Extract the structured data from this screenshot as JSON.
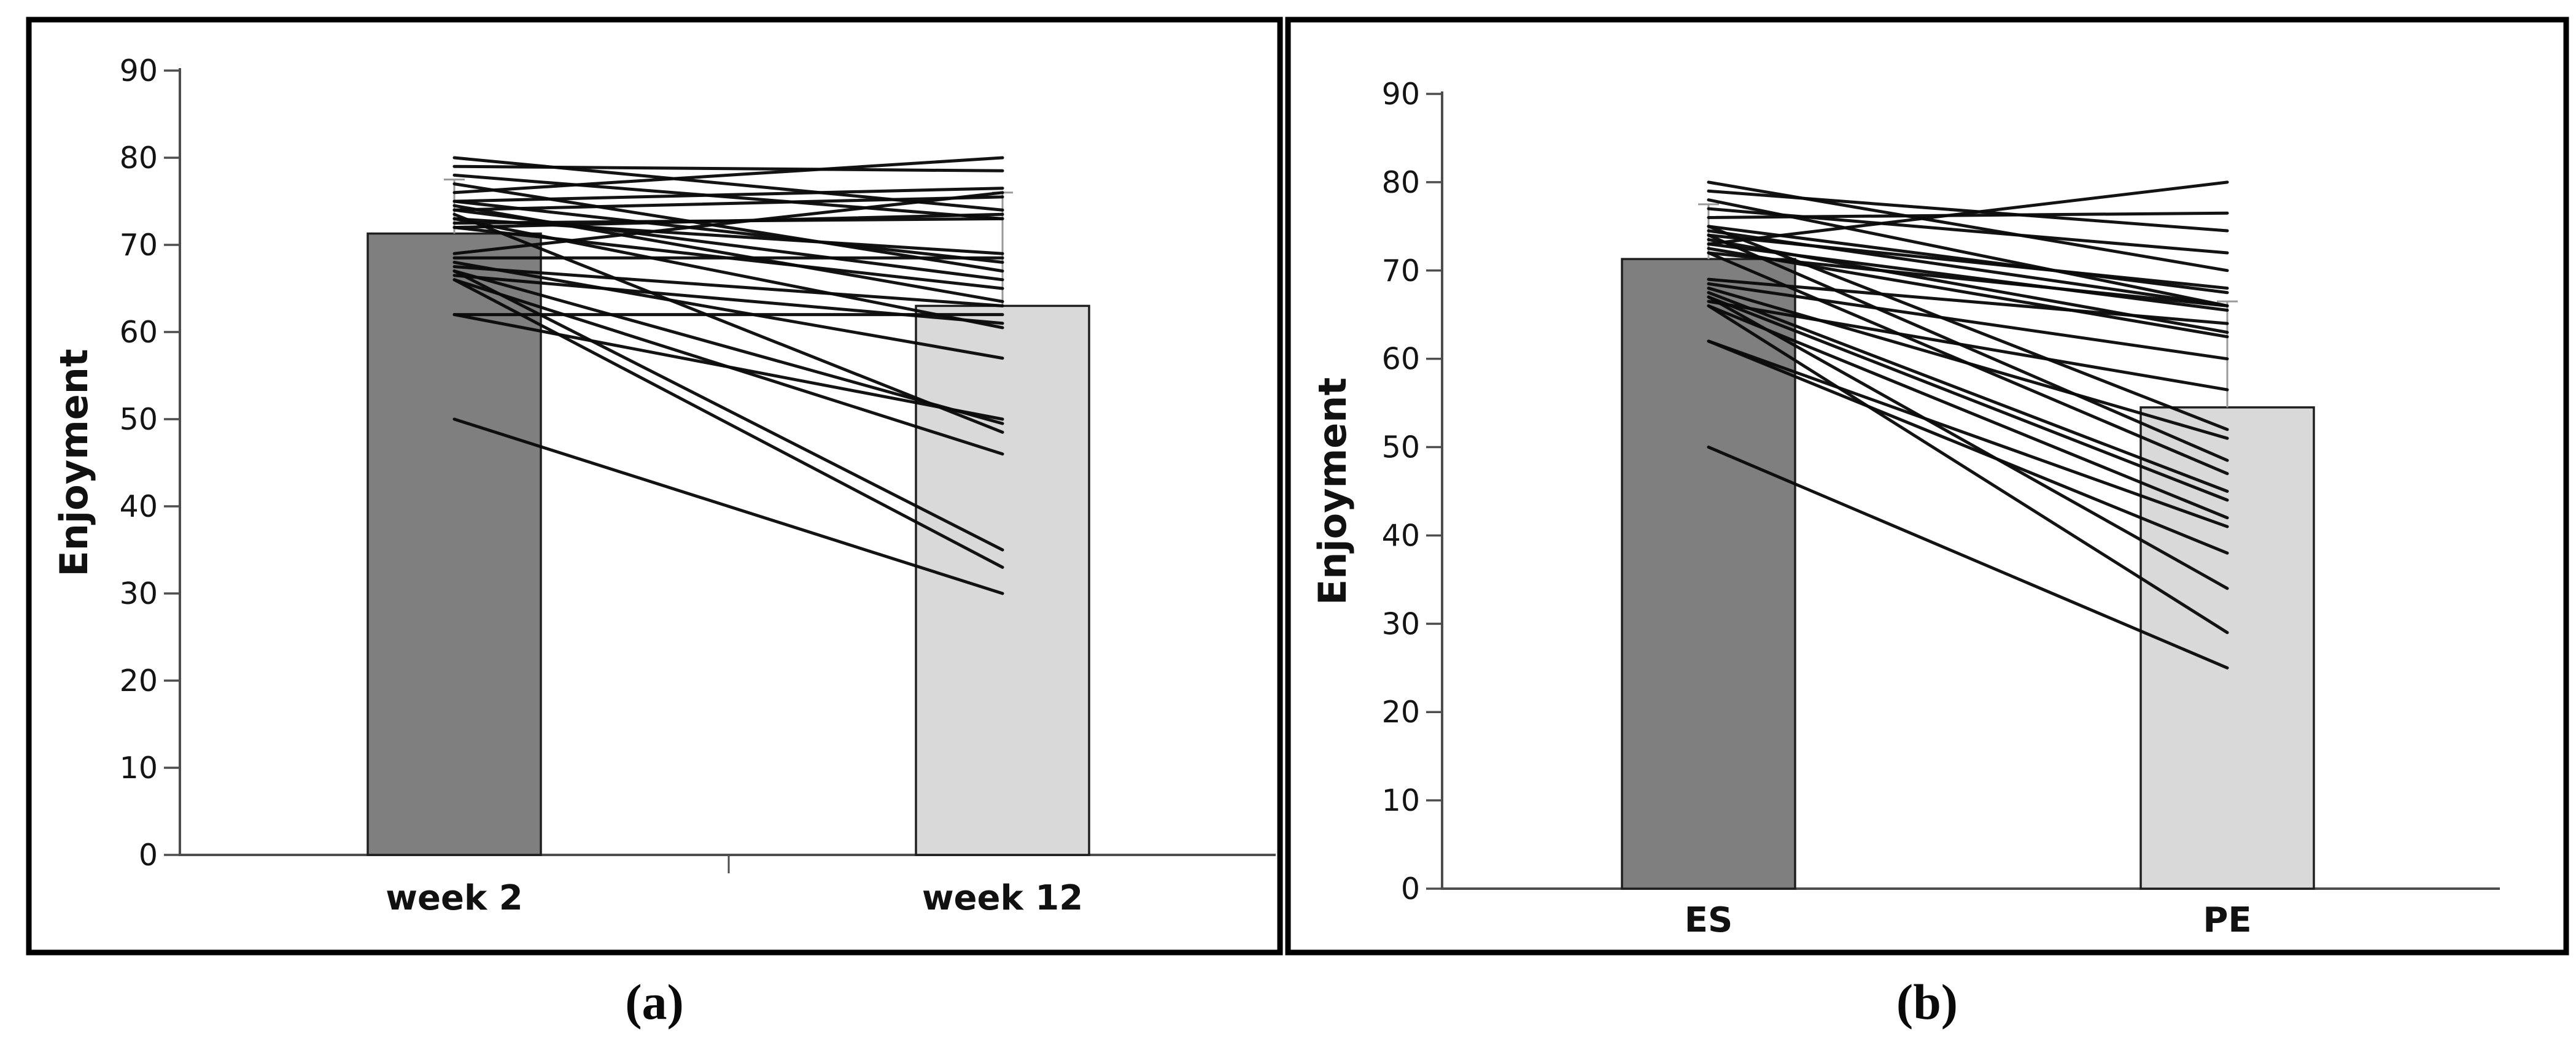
{
  "figure": {
    "captions": {
      "a": "(a)",
      "b": "(b)"
    }
  },
  "style": {
    "dark_bar_fill": "#7f7f7f",
    "light_bar_fill": "#d9d9d9",
    "bar_stroke": "#1f1f1f",
    "line_color": "#0a0a0a",
    "axis_color": "#4d4d4d",
    "error_bar_color": "#9a9a9a",
    "panel_border_color": "#000000",
    "background": "#ffffff"
  },
  "chart_data": [
    {
      "type": "bar",
      "panel": "a",
      "title": "",
      "xlabel": "",
      "ylabel": "Enjoyment",
      "ylim": [
        0,
        90
      ],
      "ytick_labels": [
        "0",
        "10",
        "20",
        "30",
        "40",
        "50",
        "60",
        "70",
        "80",
        "90"
      ],
      "grid": false,
      "legend": "none",
      "categories": [
        "week 2",
        "week 12"
      ],
      "bar_values": [
        71.3,
        63
      ],
      "bar_fills": [
        "#7f7f7f",
        "#d9d9d9"
      ],
      "error_bar_tops": [
        77.5,
        76
      ],
      "overlay": "paired individual participant lines",
      "paired_lines": [
        [
          80,
          74
        ],
        [
          79,
          78.5
        ],
        [
          78,
          73
        ],
        [
          77,
          67
        ],
        [
          76,
          80
        ],
        [
          75,
          76.5
        ],
        [
          75,
          68
        ],
        [
          74.5,
          63.5
        ],
        [
          74,
          75.5
        ],
        [
          74,
          66
        ],
        [
          73.5,
          48.5
        ],
        [
          73,
          69
        ],
        [
          73,
          60.5
        ],
        [
          72.5,
          73
        ],
        [
          72,
          65
        ],
        [
          72,
          73.5
        ],
        [
          69,
          76
        ],
        [
          68.5,
          68.5
        ],
        [
          68,
          57
        ],
        [
          67.5,
          63
        ],
        [
          67,
          49.5
        ],
        [
          67,
          35
        ],
        [
          66.5,
          61
        ],
        [
          66,
          46
        ],
        [
          66,
          33
        ],
        [
          62,
          62
        ],
        [
          62,
          50
        ],
        [
          50,
          30
        ]
      ]
    },
    {
      "type": "bar",
      "panel": "b",
      "title": "",
      "xlabel": "",
      "ylabel": "Enjoyment",
      "ylim": [
        0,
        90
      ],
      "ytick_labels": [
        "0",
        "10",
        "20",
        "30",
        "40",
        "50",
        "60",
        "70",
        "80",
        "90"
      ],
      "grid": false,
      "legend": "none",
      "categories": [
        "ES",
        "PE"
      ],
      "bar_values": [
        71.3,
        54.5
      ],
      "bar_fills": [
        "#7f7f7f",
        "#d9d9d9"
      ],
      "error_bar_tops": [
        77.5,
        66.5
      ],
      "overlay": "paired individual participant lines",
      "paired_lines": [
        [
          80,
          70
        ],
        [
          79,
          74.5
        ],
        [
          78,
          66
        ],
        [
          77,
          72
        ],
        [
          76,
          76.5
        ],
        [
          75,
          67.5
        ],
        [
          75,
          52
        ],
        [
          74.5,
          66
        ],
        [
          74,
          68
        ],
        [
          74,
          48.5
        ],
        [
          73.5,
          63
        ],
        [
          73,
          80
        ],
        [
          73,
          65.5
        ],
        [
          72.5,
          62.5
        ],
        [
          72,
          66
        ],
        [
          72,
          47
        ],
        [
          69,
          64
        ],
        [
          68.5,
          60
        ],
        [
          68,
          51
        ],
        [
          67.5,
          45
        ],
        [
          67,
          44
        ],
        [
          67,
          34
        ],
        [
          66.5,
          56.5
        ],
        [
          66,
          42
        ],
        [
          66,
          29
        ],
        [
          62,
          41
        ],
        [
          62,
          38
        ],
        [
          50,
          25
        ]
      ]
    }
  ]
}
